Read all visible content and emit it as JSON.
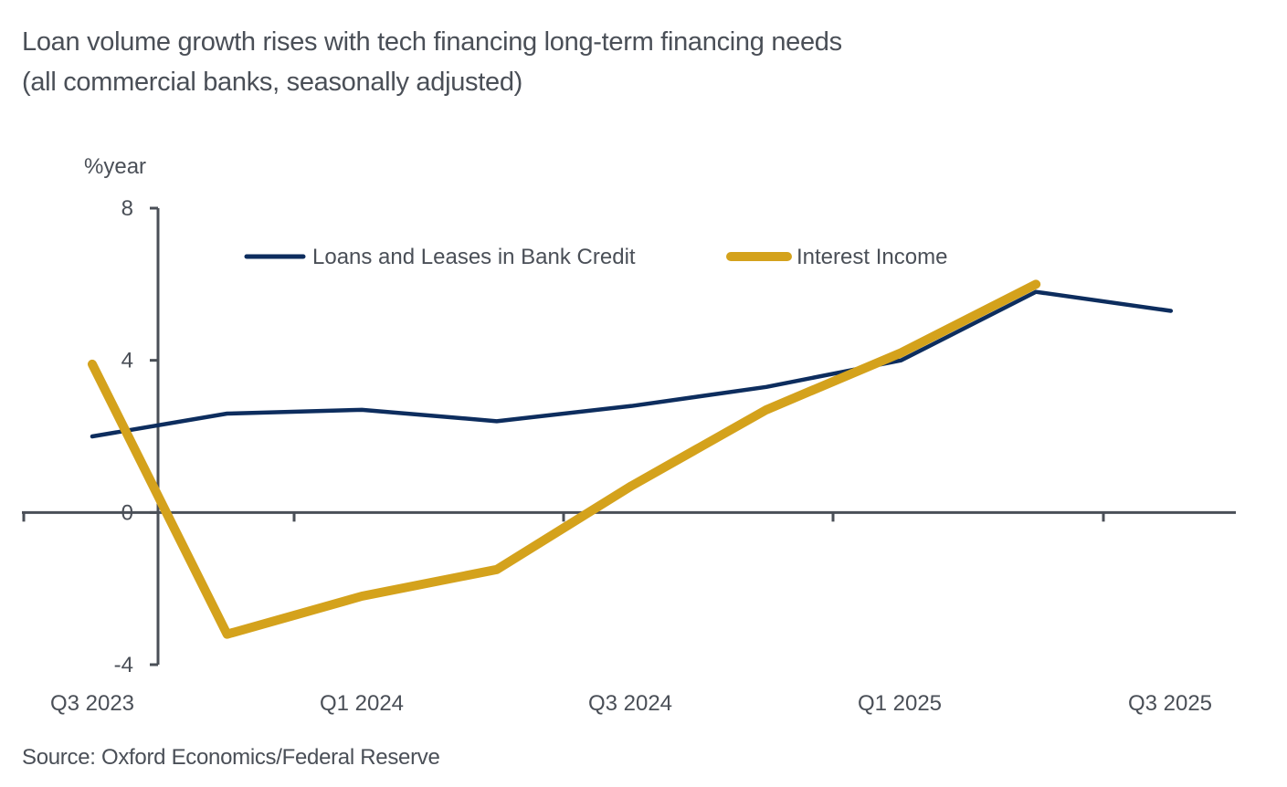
{
  "chart_data": {
    "type": "line",
    "title": "Loan volume growth rises with tech financing long-term financing needs",
    "subtitle": "(all commercial banks, seasonally adjusted)",
    "ylabel": "%year",
    "xlabel": "",
    "ylim": [
      -4,
      8
    ],
    "yticks": [
      8,
      4,
      0,
      -4
    ],
    "x": [
      "Q3 2023",
      "Q4 2023",
      "Q1 2024",
      "Q2 2024",
      "Q3 2024",
      "Q4 2024",
      "Q1 2025",
      "Q2 2025",
      "Q3 2025"
    ],
    "xtick_labels": [
      "Q3 2023",
      "Q1 2024",
      "Q3 2024",
      "Q1 2025",
      "Q3 2025"
    ],
    "grid": false,
    "legend_position": "top-center",
    "series": [
      {
        "name": "Loans and Leases in Bank Credit",
        "color": "#0d2d5e",
        "values": [
          2.0,
          2.6,
          2.7,
          2.4,
          2.8,
          3.3,
          4.0,
          5.8,
          5.3
        ]
      },
      {
        "name": "Interest Income",
        "color": "#d4a21c",
        "values": [
          3.9,
          -3.2,
          -2.2,
          -1.5,
          0.7,
          2.7,
          4.2,
          6.0,
          null
        ]
      }
    ],
    "source": "Source: Oxford Economics/Federal Reserve"
  }
}
